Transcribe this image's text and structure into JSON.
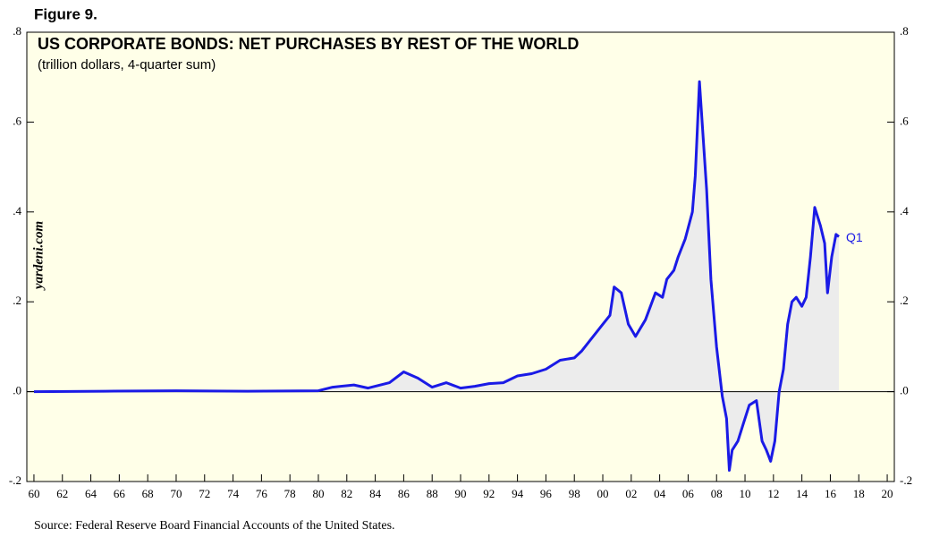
{
  "chart_data": {
    "type": "area-line",
    "figure_label": "Figure 9.",
    "title": "US CORPORATE BONDS: NET PURCHASES BY REST OF THE WORLD",
    "subtitle": "(trillion dollars, 4-quarter sum)",
    "watermark": "yardeni.com",
    "source": "Source: Federal Reserve Board Financial Accounts of the United States.",
    "annotation": "Q1",
    "color": "#1a1ae6",
    "fill_color": "#ececec",
    "background": "#ffffe8",
    "x": [
      1960,
      1965,
      1970,
      1975,
      1980,
      1981,
      1982.5,
      1983.5,
      1985,
      1986,
      1987,
      1988,
      1989,
      1990,
      1991,
      1992,
      1993,
      1994,
      1995,
      1996,
      1997,
      1998,
      1998.5,
      1999,
      1999.5,
      2000,
      2000.5,
      2000.8,
      2001.3,
      2001.8,
      2002.3,
      2003,
      2003.7,
      2004.2,
      2004.5,
      2005,
      2005.3,
      2005.8,
      2006.3,
      2006.5,
      2006.8,
      2007.3,
      2007.6,
      2008,
      2008.4,
      2008.7,
      2008.9,
      2009.1,
      2009.5,
      2009.9,
      2010.3,
      2010.8,
      2011.2,
      2011.5,
      2011.8,
      2012.1,
      2012.4,
      2012.7,
      2013,
      2013.3,
      2013.6,
      2014,
      2014.3,
      2014.6,
      2014.9,
      2015.3,
      2015.6,
      2015.8,
      2016.1,
      2016.4,
      2016.6
    ],
    "values": [
      0,
      0.001,
      0.002,
      0.001,
      0.002,
      0.01,
      0.015,
      0.008,
      0.02,
      0.044,
      0.03,
      0.01,
      0.02,
      0.008,
      0.012,
      0.018,
      0.02,
      0.035,
      0.04,
      0.05,
      0.07,
      0.075,
      0.09,
      0.11,
      0.13,
      0.15,
      0.17,
      0.233,
      0.22,
      0.15,
      0.123,
      0.16,
      0.22,
      0.21,
      0.25,
      0.27,
      0.3,
      0.34,
      0.4,
      0.48,
      0.69,
      0.45,
      0.25,
      0.1,
      -0.01,
      -0.06,
      -0.175,
      -0.13,
      -0.11,
      -0.07,
      -0.03,
      -0.02,
      -0.11,
      -0.13,
      -0.155,
      -0.11,
      0.0,
      0.05,
      0.15,
      0.2,
      0.21,
      0.19,
      0.21,
      0.3,
      0.41,
      0.37,
      0.33,
      0.22,
      0.3,
      0.35,
      0.345
    ],
    "xlim": [
      1959.5,
      2020.5
    ],
    "ylim": [
      -0.2,
      0.8
    ],
    "xticks": [
      {
        "value": 1960,
        "label": "60"
      },
      {
        "value": 1962,
        "label": "62"
      },
      {
        "value": 1964,
        "label": "64"
      },
      {
        "value": 1966,
        "label": "66"
      },
      {
        "value": 1968,
        "label": "68"
      },
      {
        "value": 1970,
        "label": "70"
      },
      {
        "value": 1972,
        "label": "72"
      },
      {
        "value": 1974,
        "label": "74"
      },
      {
        "value": 1976,
        "label": "76"
      },
      {
        "value": 1978,
        "label": "78"
      },
      {
        "value": 1980,
        "label": "80"
      },
      {
        "value": 1982,
        "label": "82"
      },
      {
        "value": 1984,
        "label": "84"
      },
      {
        "value": 1986,
        "label": "86"
      },
      {
        "value": 1988,
        "label": "88"
      },
      {
        "value": 1990,
        "label": "90"
      },
      {
        "value": 1992,
        "label": "92"
      },
      {
        "value": 1994,
        "label": "94"
      },
      {
        "value": 1996,
        "label": "96"
      },
      {
        "value": 1998,
        "label": "98"
      },
      {
        "value": 2000,
        "label": "00"
      },
      {
        "value": 2002,
        "label": "02"
      },
      {
        "value": 2004,
        "label": "04"
      },
      {
        "value": 2006,
        "label": "06"
      },
      {
        "value": 2008,
        "label": "08"
      },
      {
        "value": 2010,
        "label": "10"
      },
      {
        "value": 2012,
        "label": "12"
      },
      {
        "value": 2014,
        "label": "14"
      },
      {
        "value": 2016,
        "label": "16"
      },
      {
        "value": 2018,
        "label": "18"
      },
      {
        "value": 2020,
        "label": "20"
      }
    ],
    "yticks": [
      {
        "value": -0.2,
        "label": "-.2"
      },
      {
        "value": 0,
        "label": ".0"
      },
      {
        "value": 0.2,
        "label": ".2"
      },
      {
        "value": 0.4,
        "label": ".4"
      },
      {
        "value": 0.6,
        "label": ".6"
      },
      {
        "value": 0.8,
        "label": ".8"
      }
    ]
  }
}
